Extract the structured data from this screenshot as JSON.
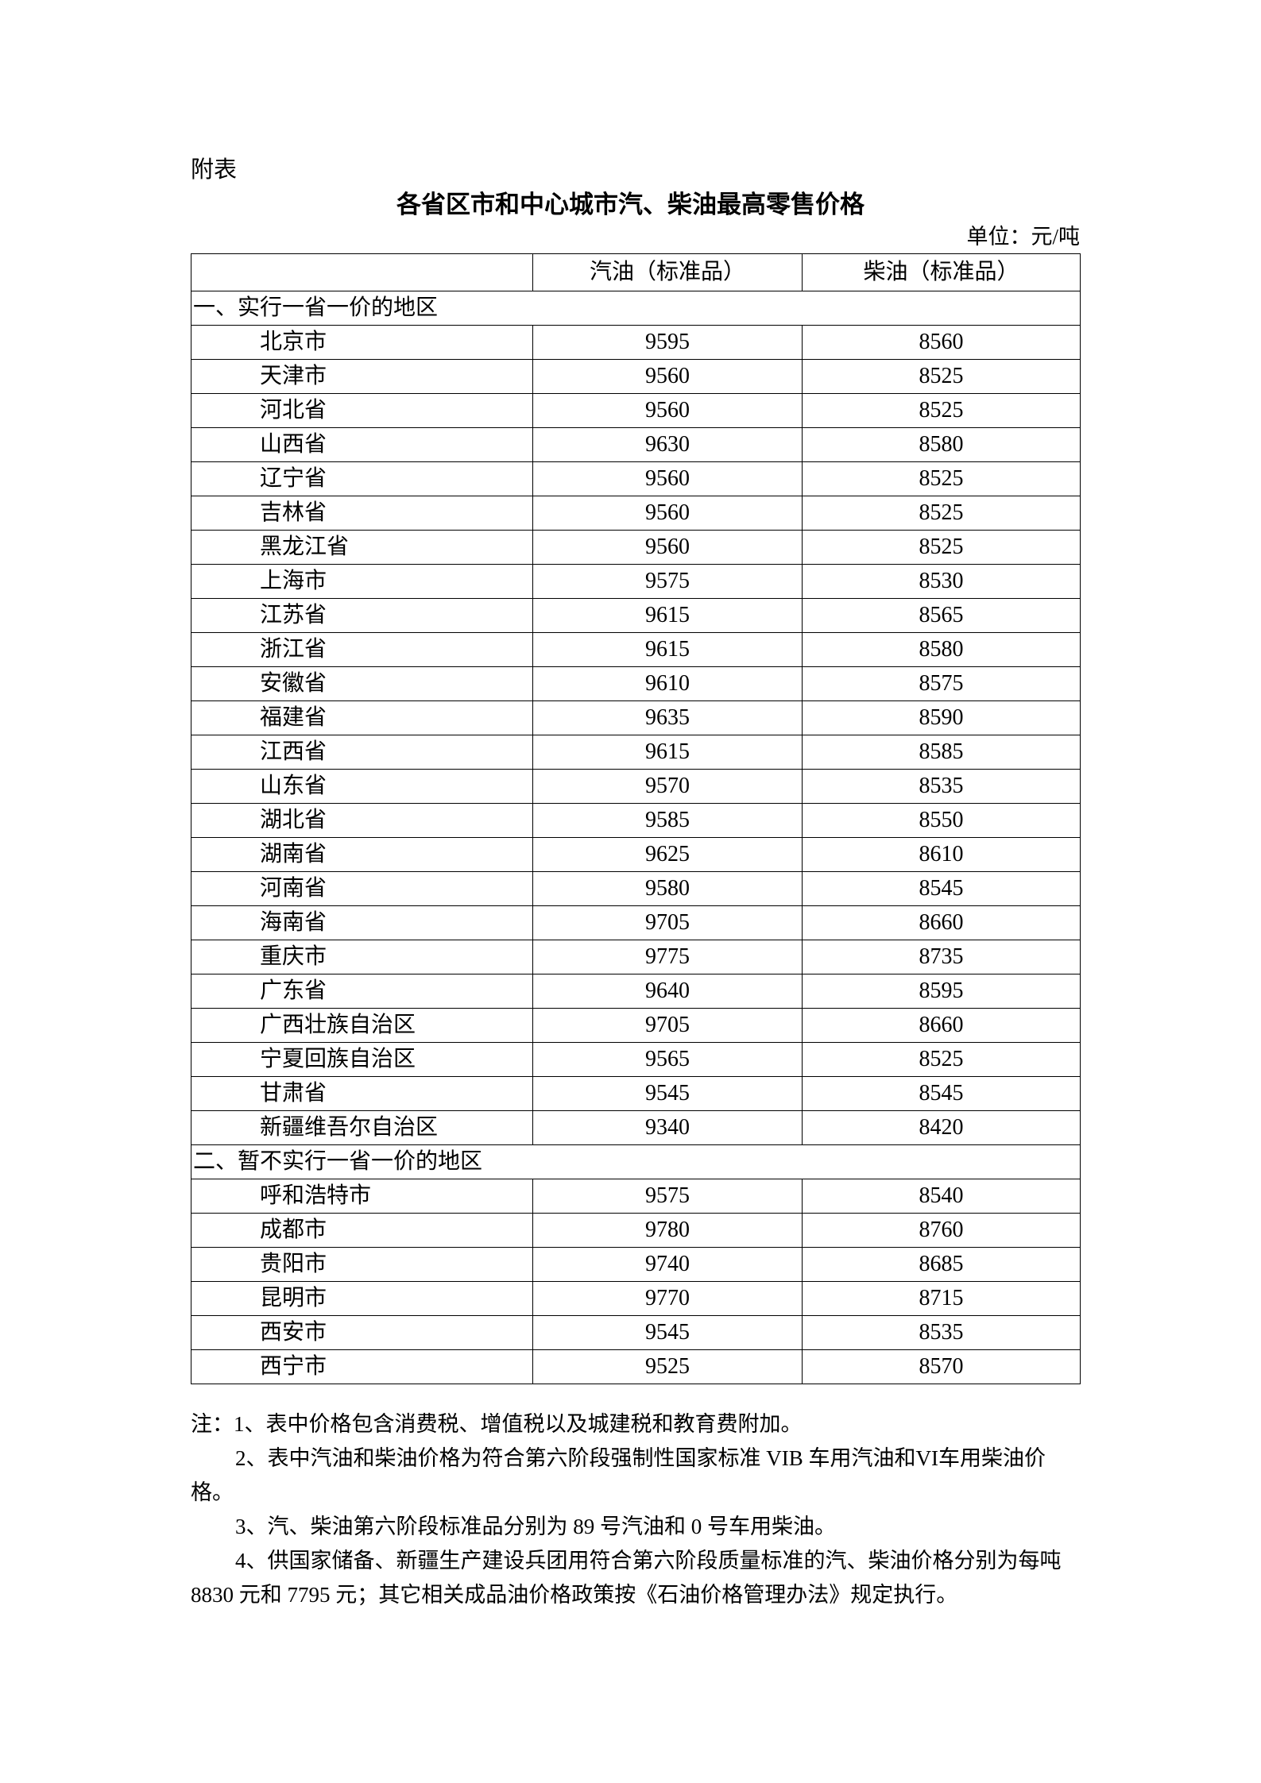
{
  "appendix_label": "附表",
  "title": "各省区市和中心城市汽、柴油最高零售价格",
  "unit": "单位：元/吨",
  "table": {
    "headers": [
      "",
      "汽油（标准品）",
      "柴油（标准品）"
    ],
    "sections": [
      {
        "label": "一、实行一省一价的地区",
        "rows": [
          [
            "北京市",
            "9595",
            "8560"
          ],
          [
            "天津市",
            "9560",
            "8525"
          ],
          [
            "河北省",
            "9560",
            "8525"
          ],
          [
            "山西省",
            "9630",
            "8580"
          ],
          [
            "辽宁省",
            "9560",
            "8525"
          ],
          [
            "吉林省",
            "9560",
            "8525"
          ],
          [
            "黑龙江省",
            "9560",
            "8525"
          ],
          [
            "上海市",
            "9575",
            "8530"
          ],
          [
            "江苏省",
            "9615",
            "8565"
          ],
          [
            "浙江省",
            "9615",
            "8580"
          ],
          [
            "安徽省",
            "9610",
            "8575"
          ],
          [
            "福建省",
            "9635",
            "8590"
          ],
          [
            "江西省",
            "9615",
            "8585"
          ],
          [
            "山东省",
            "9570",
            "8535"
          ],
          [
            "湖北省",
            "9585",
            "8550"
          ],
          [
            "湖南省",
            "9625",
            "8610"
          ],
          [
            "河南省",
            "9580",
            "8545"
          ],
          [
            "海南省",
            "9705",
            "8660"
          ],
          [
            "重庆市",
            "9775",
            "8735"
          ],
          [
            "广东省",
            "9640",
            "8595"
          ],
          [
            "广西壮族自治区",
            "9705",
            "8660"
          ],
          [
            "宁夏回族自治区",
            "9565",
            "8525"
          ],
          [
            "甘肃省",
            "9545",
            "8545"
          ],
          [
            "新疆维吾尔自治区",
            "9340",
            "8420"
          ]
        ]
      },
      {
        "label": "二、暂不实行一省一价的地区",
        "rows": [
          [
            "呼和浩特市",
            "9575",
            "8540"
          ],
          [
            "成都市",
            "9780",
            "8760"
          ],
          [
            "贵阳市",
            "9740",
            "8685"
          ],
          [
            "昆明市",
            "9770",
            "8715"
          ],
          [
            "西安市",
            "9545",
            "8535"
          ],
          [
            "西宁市",
            "9525",
            "8570"
          ]
        ]
      }
    ]
  },
  "notes": [
    "注：1、表中价格包含消费税、增值税以及城建税和教育费附加。",
    "2、表中汽油和柴油价格为符合第六阶段强制性国家标准 VIB 车用汽油和VI车用柴油价格。",
    "3、汽、柴油第六阶段标准品分别为 89 号汽油和 0 号车用柴油。",
    "4、供国家储备、新疆生产建设兵团用符合第六阶段质量标准的汽、柴油价格分别为每吨 8830 元和 7795 元；其它相关成品油价格政策按《石油价格管理办法》规定执行。"
  ]
}
